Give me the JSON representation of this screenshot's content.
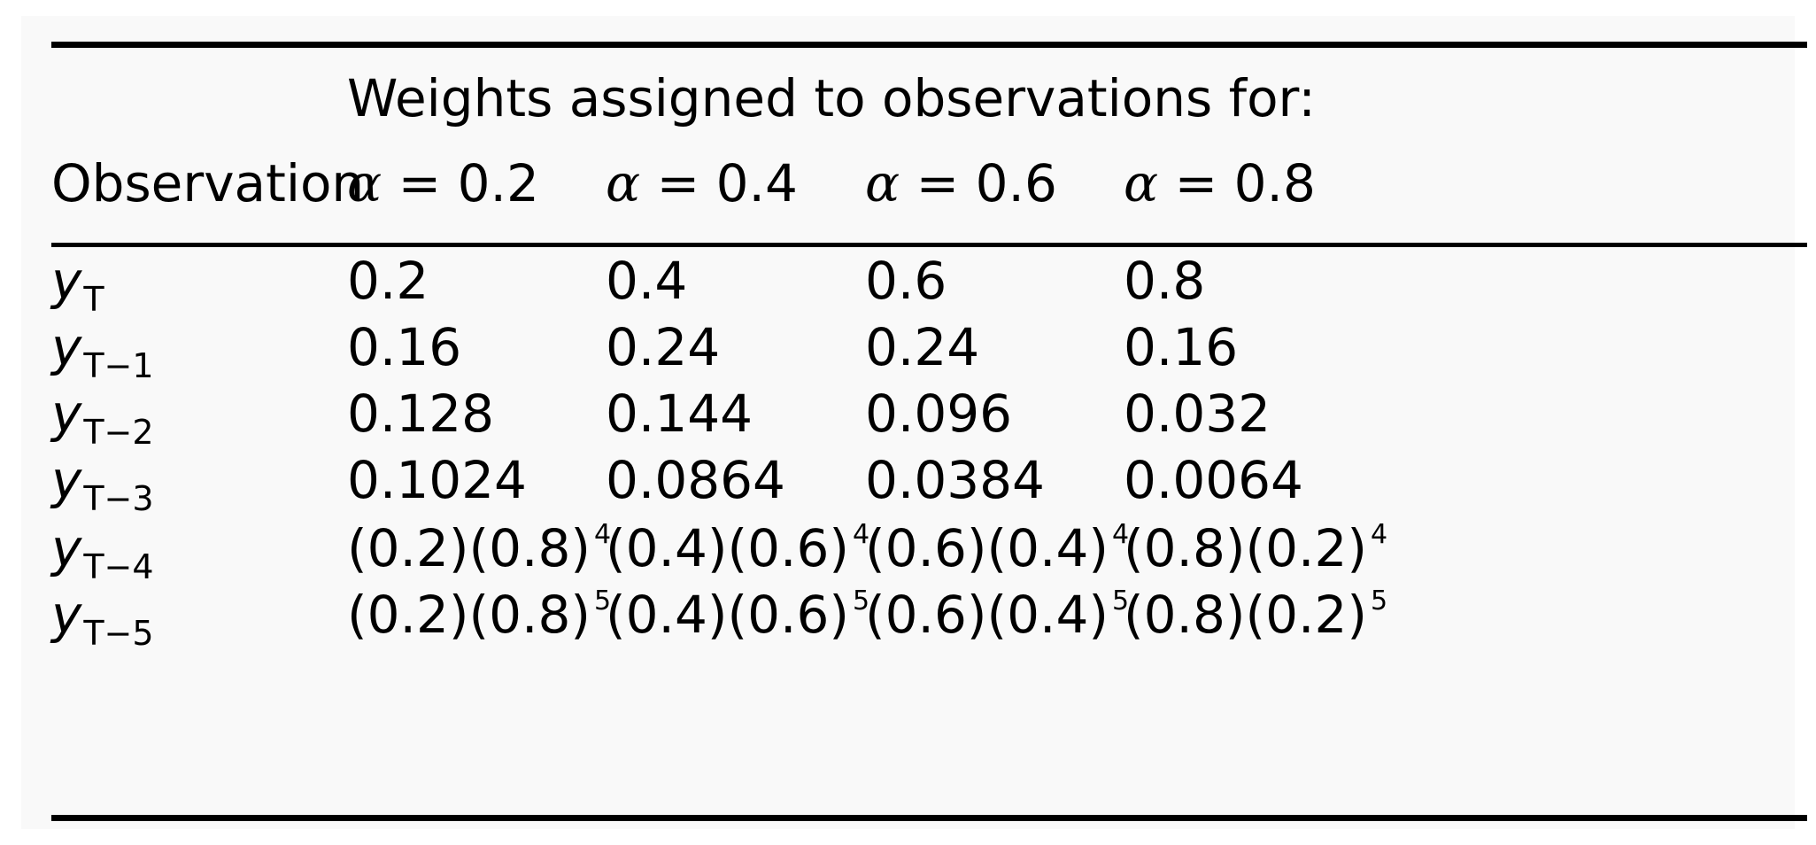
{
  "table": {
    "group_header": "Weights assigned to observations for:",
    "row_header": "Observation",
    "columns": [
      {
        "symbol": "α",
        "label": "= 0.2"
      },
      {
        "symbol": "α",
        "label": "= 0.4"
      },
      {
        "symbol": "α",
        "label": "= 0.6"
      },
      {
        "symbol": "α",
        "label": "= 0.8"
      }
    ],
    "rows": [
      {
        "var": "y",
        "sub": "T",
        "values": [
          "0.2",
          "0.4",
          "0.6",
          "0.8"
        ]
      },
      {
        "var": "y",
        "sub": "T−1",
        "values": [
          "0.16",
          "0.24",
          "0.24",
          "0.16"
        ]
      },
      {
        "var": "y",
        "sub": "T−2",
        "values": [
          "0.128",
          "0.144",
          "0.096",
          "0.032"
        ]
      },
      {
        "var": "y",
        "sub": "T−3",
        "values": [
          "0.1024",
          "0.0864",
          "0.0384",
          "0.0064"
        ]
      },
      {
        "var": "y",
        "sub": "T−4",
        "values": [
          "(0.2)(0.8)",
          "(0.4)(0.6)",
          "(0.6)(0.4)",
          "(0.8)(0.2)"
        ],
        "exponent": "4"
      },
      {
        "var": "y",
        "sub": "T−5",
        "values": [
          "(0.2)(0.8)",
          "(0.4)(0.6)",
          "(0.6)(0.4)",
          "(0.8)(0.2)"
        ],
        "exponent": "5"
      }
    ]
  }
}
